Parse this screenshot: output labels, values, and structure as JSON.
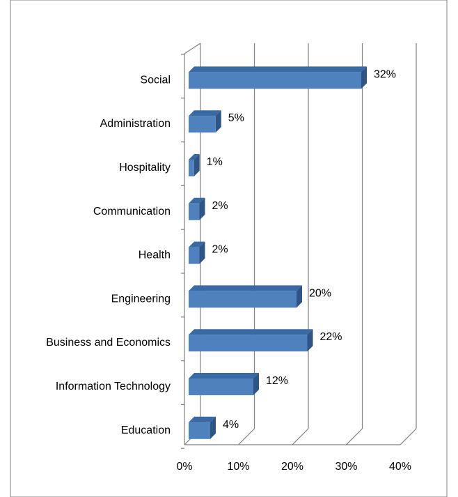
{
  "chart_data": {
    "type": "bar",
    "orientation": "horizontal",
    "style": "3d",
    "categories": [
      "Social",
      "Administration",
      "Hospitality",
      "Communication",
      "Health",
      "Engineering",
      "Business and Economics",
      "Information Technology",
      "Education"
    ],
    "values": [
      32,
      5,
      1,
      2,
      2,
      20,
      22,
      12,
      4
    ],
    "data_labels": [
      "32%",
      "5%",
      "1%",
      "2%",
      "2%",
      "20%",
      "22%",
      "12%",
      "4%"
    ],
    "x_ticks": [
      0,
      10,
      20,
      30,
      40
    ],
    "x_tick_labels": [
      "0%",
      "10%",
      "20%",
      "30%",
      "40%"
    ],
    "xlim": [
      0,
      40
    ],
    "grid": true,
    "legend": "none",
    "colors": {
      "bar_front": "#4f81bd",
      "bar_top": "#3a6aa3",
      "bar_side": "#2f5585",
      "grid": "#808080",
      "border": "#7f7f7f"
    }
  }
}
